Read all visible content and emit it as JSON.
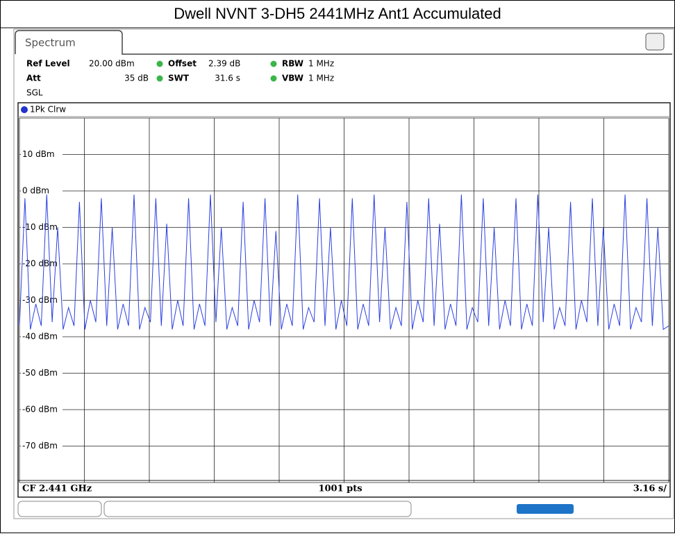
{
  "chart_data": {
    "type": "line",
    "title": "Dwell NVNT 3-DH5 2441MHz Ant1 Accumulated",
    "tab": "Spectrum",
    "info": [
      [
        "Ref Level",
        "20.00 dBm"
      ],
      [
        "Offset",
        "2.39 dB"
      ],
      [
        "RBW",
        "1 MHz"
      ],
      [
        "Att",
        "35 dB"
      ],
      [
        "SWT",
        "31.6 s"
      ],
      [
        "VBW",
        "1 MHz"
      ],
      [
        "SGL",
        ""
      ]
    ],
    "trace_label": "1Pk Clrw",
    "footer": [
      "CF 2.441 GHz",
      "1001 pts",
      "3.16 s/"
    ],
    "color": "#2a3fe0",
    "ylim": [
      -80,
      20
    ],
    "yticks": [
      {
        "value": 20,
        "label": ""
      },
      {
        "value": 10,
        "label": "10 dBm"
      },
      {
        "value": 0,
        "label": "0 dBm"
      },
      {
        "value": -10,
        "label": "-10 dBm"
      },
      {
        "value": -20,
        "label": "-20 dBm"
      },
      {
        "value": -30,
        "label": "-30 dBm"
      },
      {
        "value": -40,
        "label": "-40 dBm"
      },
      {
        "value": -50,
        "label": "-50 dBm"
      },
      {
        "value": -60,
        "label": "-60 dBm"
      },
      {
        "value": -70,
        "label": "-70 dBm"
      },
      {
        "value": -80,
        "label": ""
      }
    ],
    "xlim": [
      0,
      31.6
    ],
    "xticks": [
      0,
      3.16,
      6.32,
      9.48,
      12.64,
      15.8,
      18.96,
      22.12,
      25.28,
      28.44,
      31.6
    ],
    "values": [
      -37,
      -2,
      -38,
      -31,
      -37,
      -1,
      -36,
      -10,
      -38,
      -32,
      -37,
      -3,
      -38,
      -30,
      -36,
      -2,
      -37,
      -10,
      -38,
      -31,
      -37,
      -1,
      -38,
      -32,
      -36,
      -2,
      -37,
      -9,
      -38,
      -30,
      -37,
      -2,
      -38,
      -31,
      -37,
      -1,
      -36,
      -10,
      -38,
      -32,
      -37,
      -3,
      -38,
      -30,
      -36,
      -2,
      -37,
      -11,
      -38,
      -31,
      -37,
      -1,
      -38,
      -32,
      -36,
      -2,
      -37,
      -10,
      -38,
      -30,
      -37,
      -2,
      -38,
      -31,
      -37,
      -1,
      -36,
      -10,
      -38,
      -32,
      -37,
      -3,
      -38,
      -30,
      -36,
      -2,
      -37,
      -9,
      -38,
      -31,
      -37,
      -1,
      -38,
      -32,
      -36,
      -2,
      -37,
      -10,
      -38,
      -30,
      -37,
      -2,
      -38,
      -31,
      -37,
      -1,
      -36,
      -10,
      -38,
      -32,
      -37,
      -3,
      -38,
      -30,
      -36,
      -2,
      -37,
      -10,
      -38,
      -31,
      -37,
      -1,
      -38,
      -32,
      -36,
      -2,
      -37,
      -10,
      -38,
      -37
    ]
  }
}
